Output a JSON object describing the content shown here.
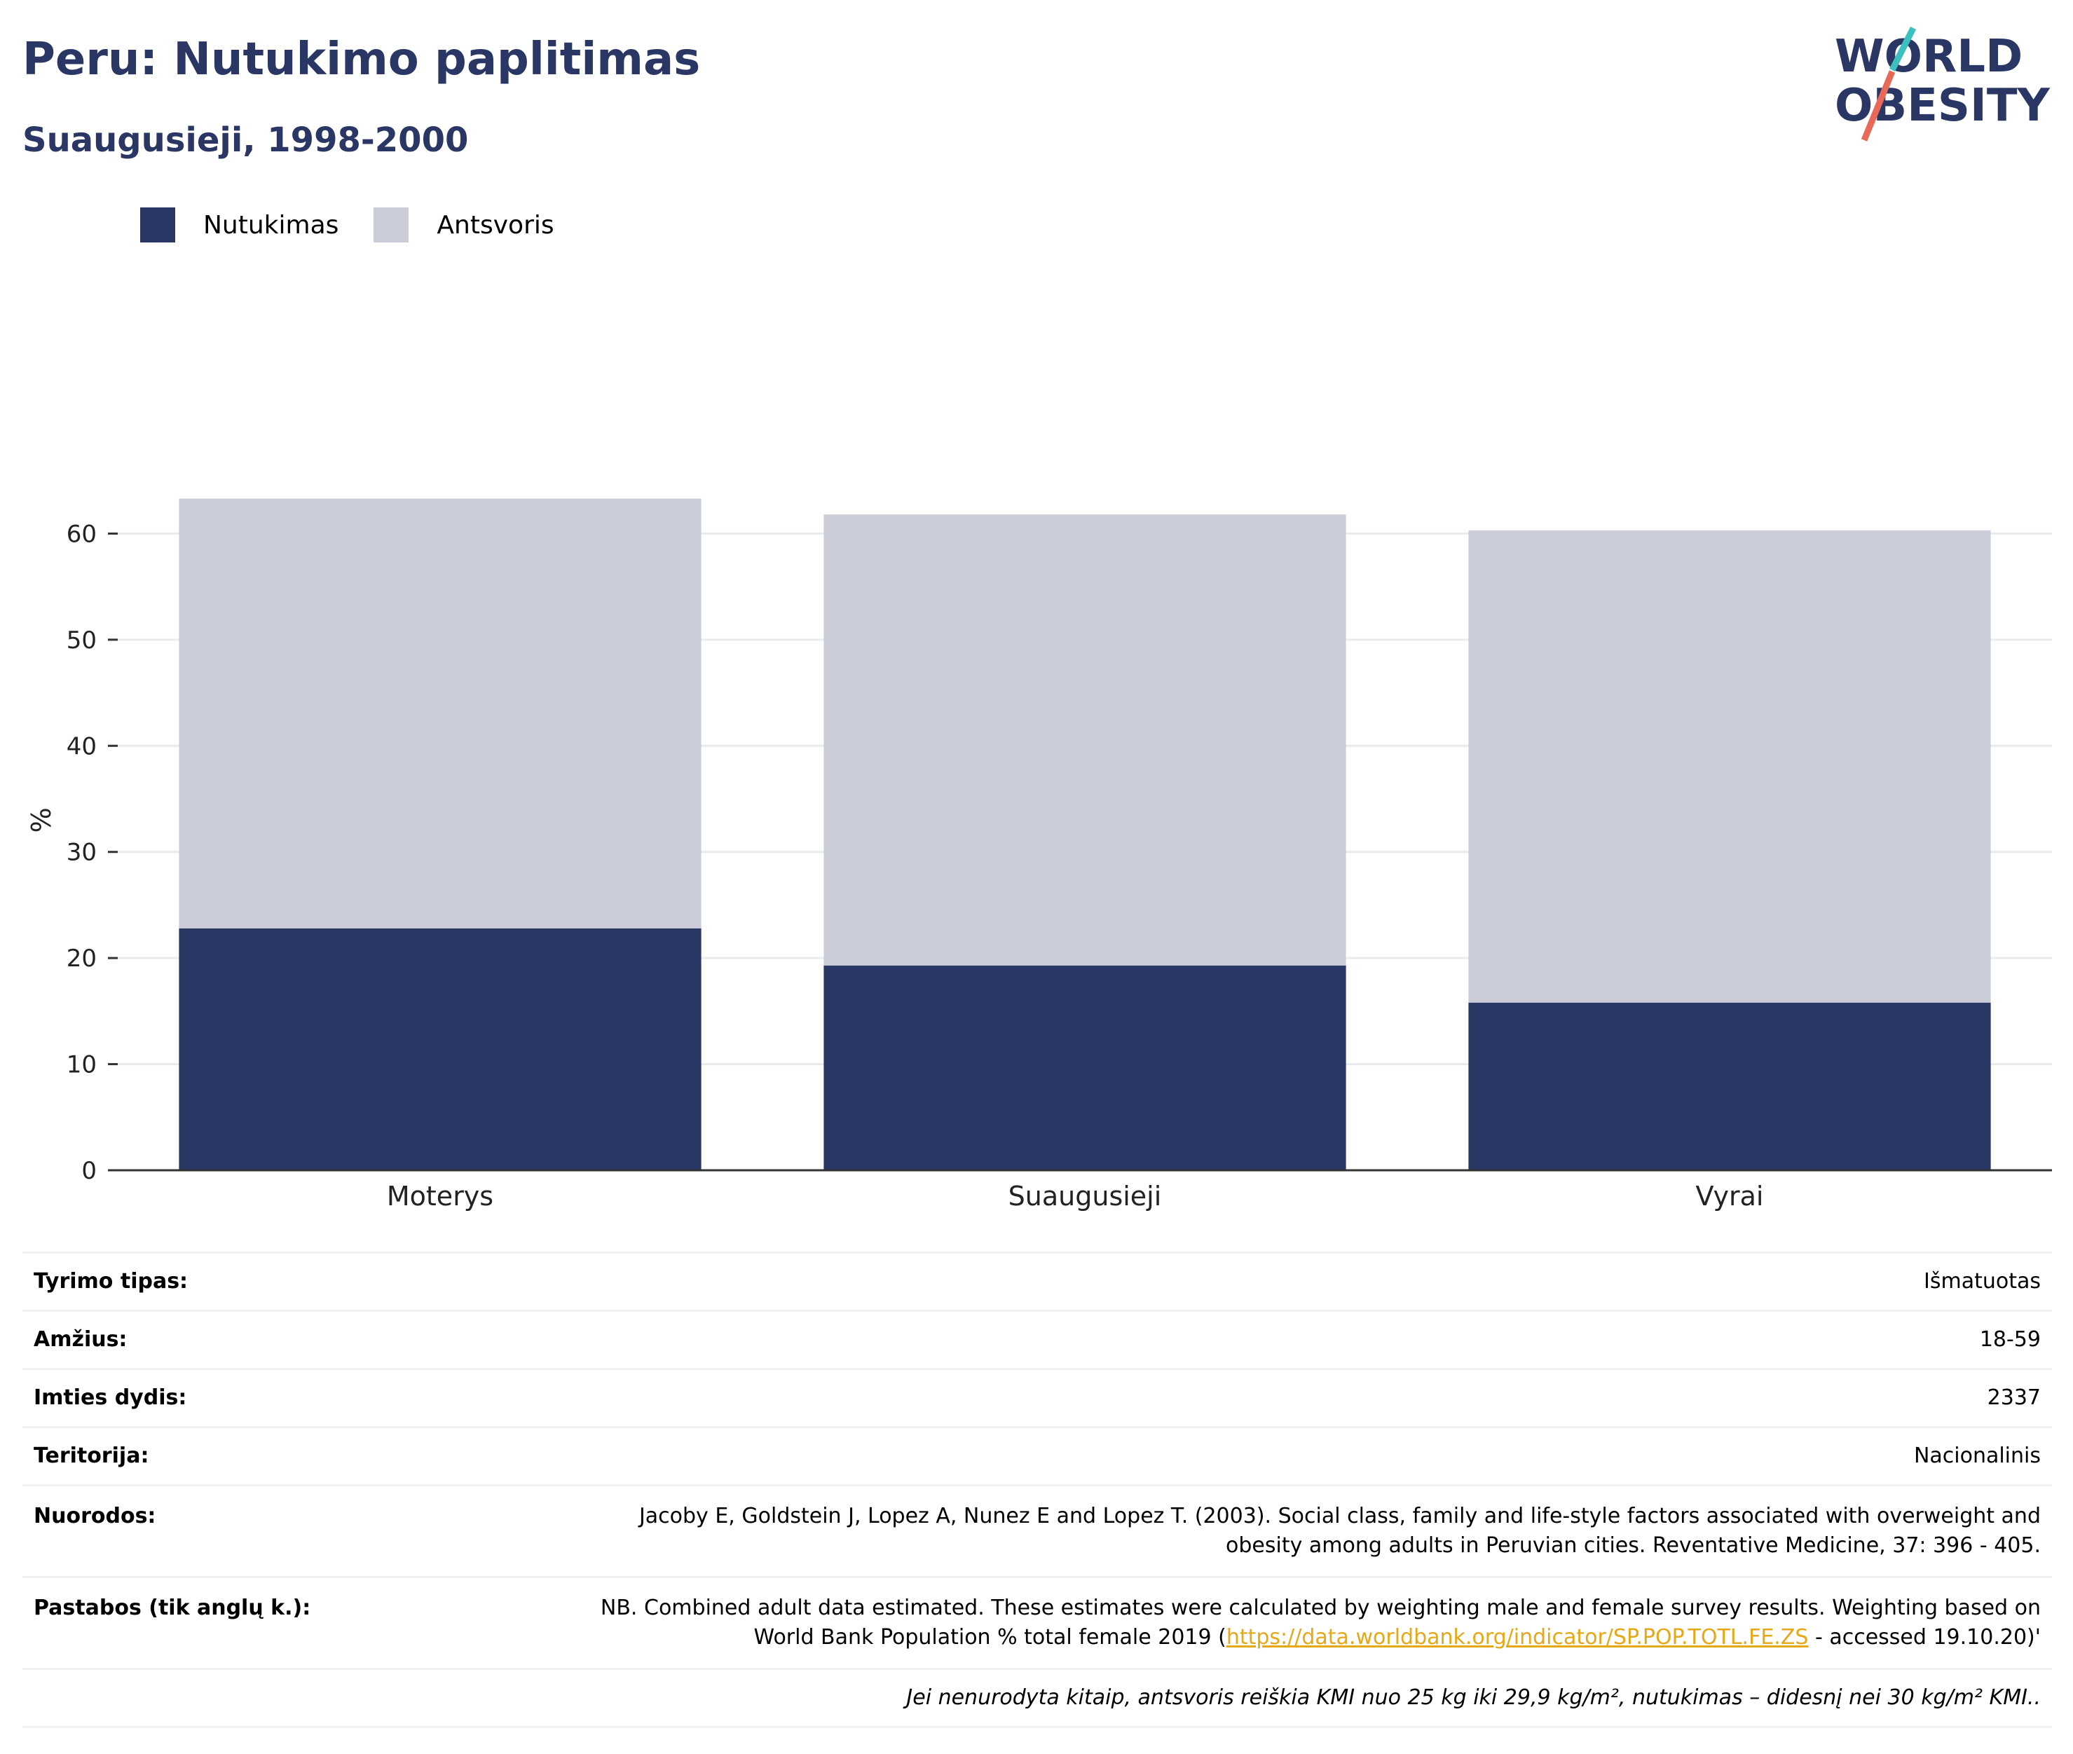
{
  "header": {
    "title": "Peru: Nutukimo paplitimas",
    "subtitle": "Suaugusieji, 1998-2000"
  },
  "logo": {
    "line1": "WORLD",
    "line2": "OBESITY"
  },
  "colors": {
    "obesity": "#2a3663",
    "overweight": "#cacdd8",
    "title": "#2a3663",
    "link": "#e6a817",
    "logo_slash_top": "#3bbfbf",
    "logo_slash_bottom": "#e8695a"
  },
  "chart_data": {
    "type": "bar",
    "stacked": true,
    "categories": [
      "Moterys",
      "Suaugusieji",
      "Vyrai"
    ],
    "series": [
      {
        "name": "Nutukimas",
        "values": [
          22.8,
          19.3,
          15.8
        ]
      },
      {
        "name": "Antsvoris",
        "values": [
          40.5,
          42.5,
          44.5
        ]
      }
    ],
    "ylabel": "%",
    "ylim": [
      0,
      70
    ],
    "yticks": [
      "0",
      "10",
      "20",
      "30",
      "40",
      "50",
      "60"
    ],
    "grid": true,
    "legend": "top-left"
  },
  "info": {
    "rows": [
      {
        "label": "Tyrimo tipas:",
        "value": "Išmatuotas"
      },
      {
        "label": "Amžius:",
        "value": "18-59"
      },
      {
        "label": "Imties dydis:",
        "value": "2337"
      },
      {
        "label": "Teritorija:",
        "value": "Nacionalinis"
      }
    ],
    "references_label": "Nuorodos:",
    "references_value": "Jacoby E, Goldstein J, Lopez A, Nunez E and Lopez T. (2003). Social class, family and life-style factors associated with overweight and obesity among adults in Peruvian cities. Reventative Medicine, 37: 396 - 405.",
    "notes_label": "Pastabos (tik anglų k.):",
    "notes_before": "NB. Combined adult data estimated. These estimates were calculated by weighting male and female survey results. Weighting based on World Bank Population % total female 2019 (",
    "notes_link": "https://data.worldbank.org/indicator/SP.POP.TOTL.FE.ZS",
    "notes_after": " - accessed 19.10.20)'",
    "footnote": "Jei nenurodyta kitaip, antsvoris reiškia KMI nuo 25 kg iki 29,9 kg/m², nutukimas – didesnį nei 30 kg/m² KMI.."
  }
}
